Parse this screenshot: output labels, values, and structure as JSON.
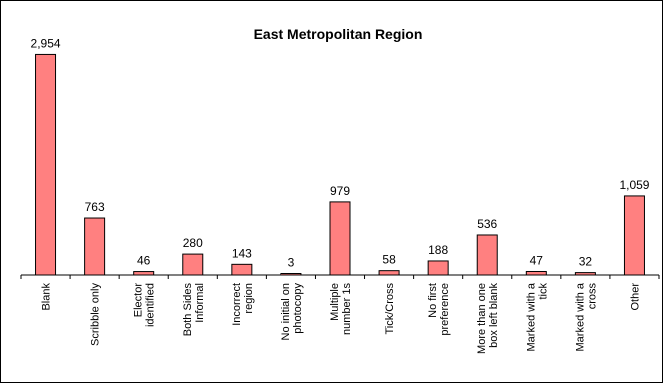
{
  "chart_data": {
    "type": "bar",
    "title": "East Metropolitan Region",
    "xlabel": "",
    "ylabel": "",
    "ylim": [
      0,
      3000
    ],
    "grid": false,
    "legend": "none",
    "bar_color": "#FF8080",
    "categories": [
      [
        "Blank"
      ],
      [
        "Scribble only"
      ],
      [
        "Elector",
        "identified"
      ],
      [
        "Both Sides",
        "Informal"
      ],
      [
        "Incorrect",
        "region"
      ],
      [
        "No initial on",
        "photocopy"
      ],
      [
        "Multiple",
        "number 1s"
      ],
      [
        "Tick/Cross"
      ],
      [
        "No first",
        "preference"
      ],
      [
        "More than one",
        "box left blank"
      ],
      [
        "Marked with a",
        "tick"
      ],
      [
        "Marked with a",
        "cross"
      ],
      [
        "Other"
      ]
    ],
    "values": [
      2954,
      763,
      46,
      280,
      143,
      3,
      979,
      58,
      188,
      536,
      47,
      32,
      1059
    ],
    "value_labels": [
      "2,954",
      "763",
      "46",
      "280",
      "143",
      "3",
      "979",
      "58",
      "188",
      "536",
      "47",
      "32",
      "1,059"
    ]
  }
}
